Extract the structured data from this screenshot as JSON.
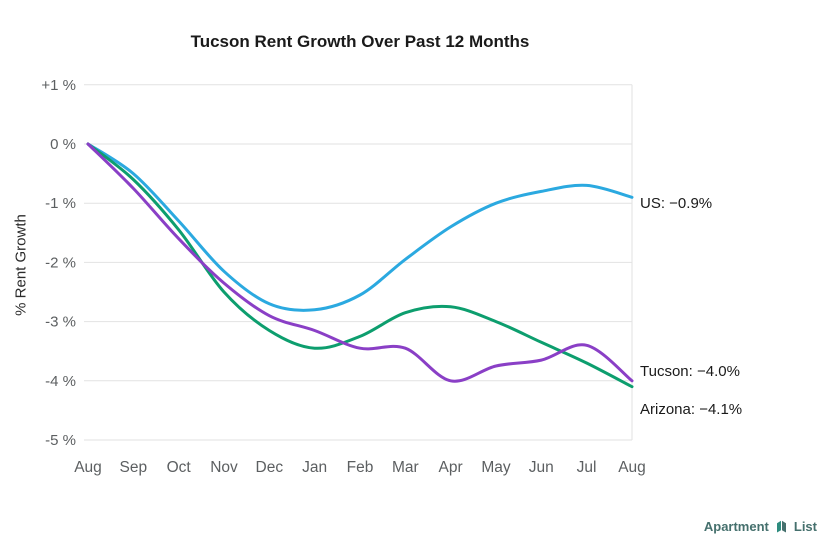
{
  "chart": {
    "title": "Tucson Rent Growth Over Past 12 Months",
    "y_axis_label": "% Rent Growth"
  },
  "chart_data": {
    "type": "line",
    "title": "Tucson Rent Growth Over Past 12 Months",
    "ylabel": "% Rent Growth",
    "xlabel": "",
    "ylim": [
      -5,
      1
    ],
    "grid": "horizontal",
    "legend": "end-of-line-labels",
    "categories": [
      "Aug",
      "Sep",
      "Oct",
      "Nov",
      "Dec",
      "Jan",
      "Feb",
      "Mar",
      "Apr",
      "May",
      "Jun",
      "Jul",
      "Aug"
    ],
    "y_ticks": [
      {
        "value": 1,
        "label": "+1 %"
      },
      {
        "value": 0,
        "label": "0 %"
      },
      {
        "value": -1,
        "label": "-1 %"
      },
      {
        "value": -2,
        "label": "-2 %"
      },
      {
        "value": -3,
        "label": "-3 %"
      },
      {
        "value": -4,
        "label": "-4 %"
      },
      {
        "value": -5,
        "label": "-5 %"
      }
    ],
    "series": [
      {
        "name": "US",
        "color": "#2ba9e0",
        "end_label": "US: −0.9%",
        "final_value": -0.9,
        "values": [
          0,
          -0.5,
          -1.3,
          -2.15,
          -2.7,
          -2.8,
          -2.55,
          -1.95,
          -1.4,
          -1.0,
          -0.8,
          -0.7,
          -0.9
        ]
      },
      {
        "name": "Arizona",
        "color": "#0d9e6e",
        "end_label": "Arizona: −4.1%",
        "final_value": -4.1,
        "values": [
          0,
          -0.6,
          -1.45,
          -2.5,
          -3.15,
          -3.45,
          -3.25,
          -2.85,
          -2.75,
          -3.0,
          -3.35,
          -3.7,
          -4.1
        ]
      },
      {
        "name": "Tucson",
        "color": "#8a3fc6",
        "end_label": "Tucson: −4.0%",
        "final_value": -4.0,
        "values": [
          0,
          -0.75,
          -1.6,
          -2.35,
          -2.9,
          -3.15,
          -3.45,
          -3.45,
          -4.0,
          -3.75,
          -3.65,
          -3.4,
          -4.0
        ]
      }
    ]
  },
  "footer": {
    "logo_text_1": "Apartment",
    "logo_text_2": "List"
  },
  "colors": {
    "grid": "#e2e2e2",
    "logo": "#45706d"
  }
}
